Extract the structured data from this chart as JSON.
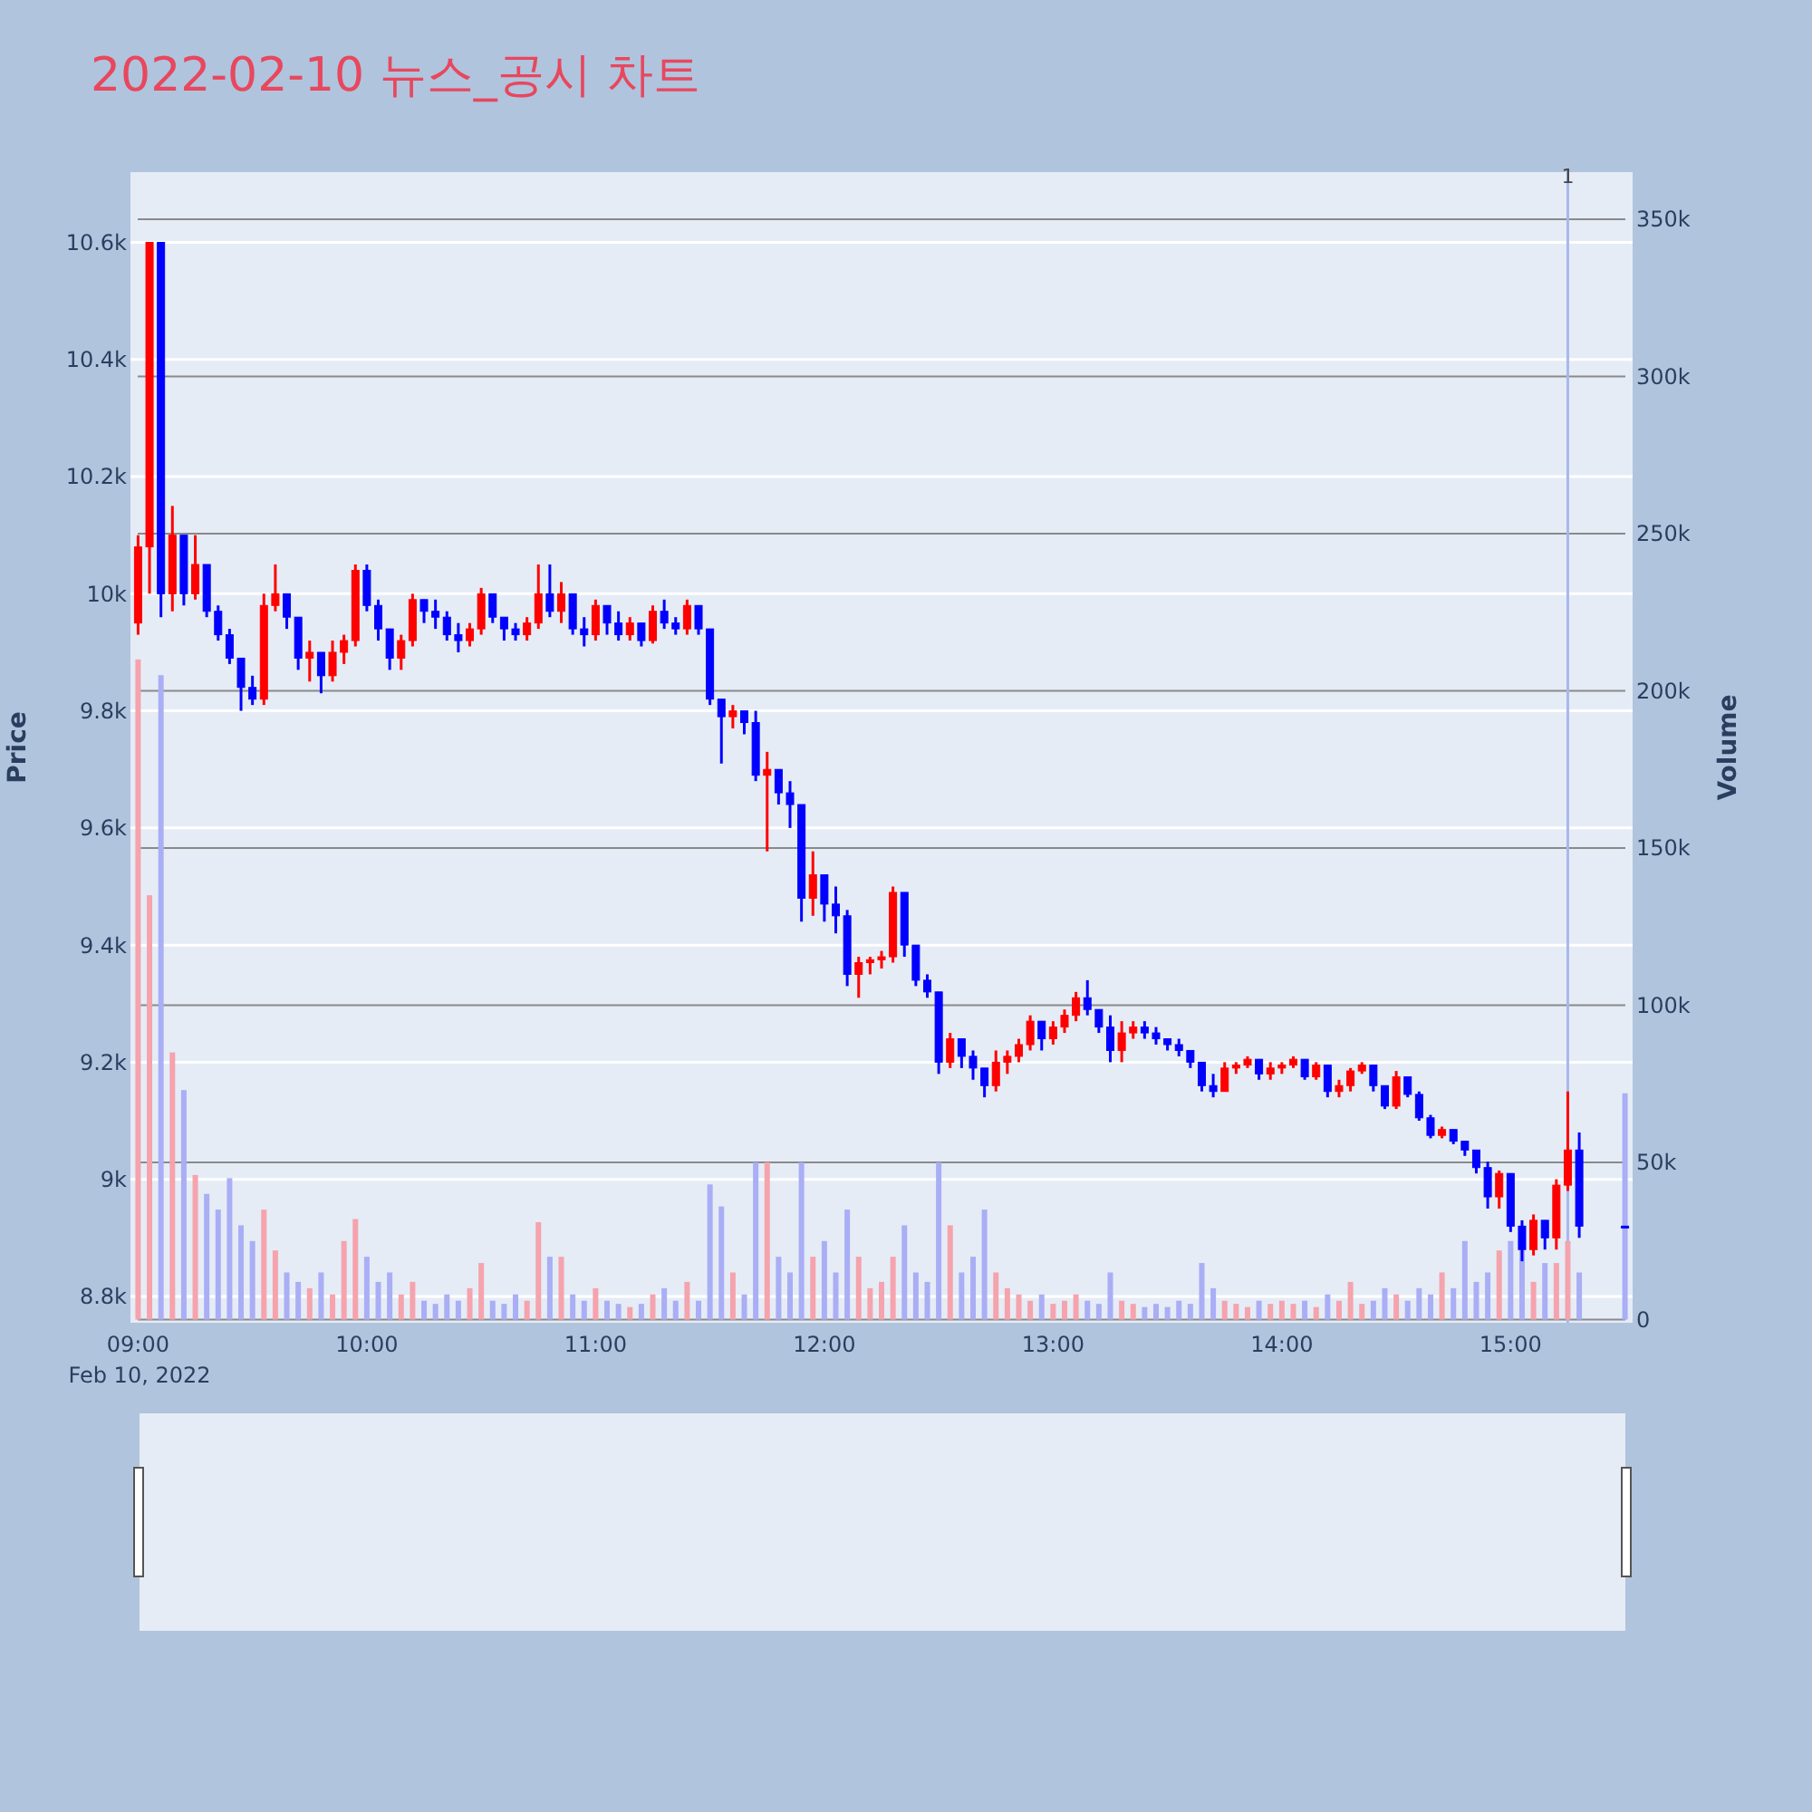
{
  "chart_data": {
    "type": "candlestick",
    "title": "2022-02-10 뉴스_공시 차트",
    "ylabel": "Price",
    "y2label": "Volume",
    "annotations": [
      "Feb 10, 2022"
    ],
    "x": [
      "2022-02-10T09:00",
      "2022-02-10T09:03",
      "2022-02-10T09:06",
      "2022-02-10T09:09",
      "2022-02-10T09:12",
      "2022-02-10T09:15",
      "2022-02-10T09:18",
      "2022-02-10T09:21",
      "2022-02-10T09:24",
      "2022-02-10T09:27",
      "2022-02-10T09:30",
      "2022-02-10T09:33",
      "2022-02-10T09:36",
      "2022-02-10T09:39",
      "2022-02-10T09:42",
      "2022-02-10T09:45",
      "2022-02-10T09:48",
      "2022-02-10T09:51",
      "2022-02-10T09:54",
      "2022-02-10T09:57",
      "2022-02-10T10:00",
      "2022-02-10T10:03",
      "2022-02-10T10:06",
      "2022-02-10T10:09",
      "2022-02-10T10:12",
      "2022-02-10T10:15",
      "2022-02-10T10:18",
      "2022-02-10T10:21",
      "2022-02-10T10:24",
      "2022-02-10T10:27",
      "2022-02-10T10:30",
      "2022-02-10T10:33",
      "2022-02-10T10:36",
      "2022-02-10T10:39",
      "2022-02-10T10:42",
      "2022-02-10T10:45",
      "2022-02-10T10:48",
      "2022-02-10T10:51",
      "2022-02-10T10:54",
      "2022-02-10T10:57",
      "2022-02-10T11:00",
      "2022-02-10T11:03",
      "2022-02-10T11:06",
      "2022-02-10T11:09",
      "2022-02-10T11:12",
      "2022-02-10T11:15",
      "2022-02-10T11:18",
      "2022-02-10T11:21",
      "2022-02-10T11:24",
      "2022-02-10T11:27",
      "2022-02-10T11:30",
      "2022-02-10T11:33",
      "2022-02-10T11:36",
      "2022-02-10T11:39",
      "2022-02-10T11:42",
      "2022-02-10T11:45",
      "2022-02-10T11:48",
      "2022-02-10T11:51",
      "2022-02-10T11:54",
      "2022-02-10T11:57",
      "2022-02-10T12:00",
      "2022-02-10T12:03",
      "2022-02-10T12:06",
      "2022-02-10T12:09",
      "2022-02-10T12:12",
      "2022-02-10T12:15",
      "2022-02-10T12:18",
      "2022-02-10T12:21",
      "2022-02-10T12:24",
      "2022-02-10T12:27",
      "2022-02-10T12:30",
      "2022-02-10T12:33",
      "2022-02-10T12:36",
      "2022-02-10T12:39",
      "2022-02-10T12:42",
      "2022-02-10T12:45",
      "2022-02-10T12:48",
      "2022-02-10T12:51",
      "2022-02-10T12:54",
      "2022-02-10T12:57",
      "2022-02-10T13:00",
      "2022-02-10T13:03",
      "2022-02-10T13:06",
      "2022-02-10T13:09",
      "2022-02-10T13:12",
      "2022-02-10T13:15",
      "2022-02-10T13:18",
      "2022-02-10T13:21",
      "2022-02-10T13:24",
      "2022-02-10T13:27",
      "2022-02-10T13:30",
      "2022-02-10T13:33",
      "2022-02-10T13:36",
      "2022-02-10T13:39",
      "2022-02-10T13:42",
      "2022-02-10T13:45",
      "2022-02-10T13:48",
      "2022-02-10T13:51",
      "2022-02-10T13:54",
      "2022-02-10T13:57",
      "2022-02-10T14:00",
      "2022-02-10T14:03",
      "2022-02-10T14:06",
      "2022-02-10T14:09",
      "2022-02-10T14:12",
      "2022-02-10T14:15",
      "2022-02-10T14:18",
      "2022-02-10T14:21",
      "2022-02-10T14:24",
      "2022-02-10T14:27",
      "2022-02-10T14:30",
      "2022-02-10T14:33",
      "2022-02-10T14:36",
      "2022-02-10T14:39",
      "2022-02-10T14:42",
      "2022-02-10T14:45",
      "2022-02-10T14:48",
      "2022-02-10T14:51",
      "2022-02-10T14:54",
      "2022-02-10T14:57",
      "2022-02-10T15:00",
      "2022-02-10T15:03",
      "2022-02-10T15:06",
      "2022-02-10T15:09",
      "2022-02-10T15:12",
      "2022-02-10T15:15",
      "2022-02-10T15:18",
      "2022-02-10T15:30"
    ],
    "ohlc": [
      [
        9950,
        10100,
        9930,
        10080
      ],
      [
        10080,
        10600,
        10000,
        10600
      ],
      [
        10600,
        10600,
        9960,
        10000
      ],
      [
        10000,
        10150,
        9970,
        10100
      ],
      [
        10100,
        10100,
        9980,
        10000
      ],
      [
        10000,
        10100,
        9990,
        10050
      ],
      [
        10050,
        10050,
        9960,
        9970
      ],
      [
        9970,
        9980,
        9920,
        9930
      ],
      [
        9930,
        9940,
        9880,
        9890
      ],
      [
        9890,
        9890,
        9800,
        9840
      ],
      [
        9840,
        9860,
        9810,
        9820
      ],
      [
        9820,
        10000,
        9810,
        9980
      ],
      [
        9980,
        10050,
        9970,
        10000
      ],
      [
        10000,
        10000,
        9940,
        9960
      ],
      [
        9960,
        9960,
        9870,
        9890
      ],
      [
        9890,
        9920,
        9850,
        9900
      ],
      [
        9900,
        9900,
        9830,
        9860
      ],
      [
        9860,
        9920,
        9850,
        9900
      ],
      [
        9900,
        9930,
        9880,
        9920
      ],
      [
        9920,
        10050,
        9910,
        10040
      ],
      [
        10040,
        10050,
        9970,
        9980
      ],
      [
        9980,
        9990,
        9920,
        9940
      ],
      [
        9940,
        9940,
        9870,
        9890
      ],
      [
        9890,
        9930,
        9870,
        9920
      ],
      [
        9920,
        10000,
        9910,
        9990
      ],
      [
        9990,
        9990,
        9950,
        9970
      ],
      [
        9970,
        9990,
        9940,
        9960
      ],
      [
        9960,
        9970,
        9920,
        9930
      ],
      [
        9930,
        9950,
        9900,
        9920
      ],
      [
        9920,
        9950,
        9910,
        9940
      ],
      [
        9940,
        10010,
        9930,
        10000
      ],
      [
        10000,
        10000,
        9950,
        9960
      ],
      [
        9960,
        9960,
        9920,
        9940
      ],
      [
        9940,
        9950,
        9920,
        9930
      ],
      [
        9930,
        9960,
        9920,
        9950
      ],
      [
        9950,
        10050,
        9940,
        10000
      ],
      [
        10000,
        10050,
        9960,
        9970
      ],
      [
        9970,
        10020,
        9950,
        10000
      ],
      [
        10000,
        10000,
        9930,
        9940
      ],
      [
        9940,
        9960,
        9910,
        9930
      ],
      [
        9930,
        9990,
        9920,
        9980
      ],
      [
        9980,
        9980,
        9930,
        9950
      ],
      [
        9950,
        9970,
        9920,
        9930
      ],
      [
        9930,
        9960,
        9920,
        9950
      ],
      [
        9950,
        9950,
        9910,
        9920
      ],
      [
        9920,
        9980,
        9915,
        9970
      ],
      [
        9970,
        9990,
        9940,
        9950
      ],
      [
        9950,
        9960,
        9930,
        9940
      ],
      [
        9940,
        9990,
        9930,
        9980
      ],
      [
        9980,
        9980,
        9930,
        9940
      ],
      [
        9940,
        9940,
        9810,
        9820
      ],
      [
        9820,
        9820,
        9710,
        9790
      ],
      [
        9790,
        9810,
        9770,
        9800
      ],
      [
        9800,
        9800,
        9760,
        9780
      ],
      [
        9780,
        9800,
        9680,
        9690
      ],
      [
        9690,
        9730,
        9560,
        9700
      ],
      [
        9700,
        9700,
        9640,
        9660
      ],
      [
        9660,
        9680,
        9600,
        9640
      ],
      [
        9640,
        9640,
        9440,
        9480
      ],
      [
        9480,
        9560,
        9450,
        9520
      ],
      [
        9520,
        9520,
        9440,
        9470
      ],
      [
        9470,
        9500,
        9420,
        9450
      ],
      [
        9450,
        9460,
        9330,
        9350
      ],
      [
        9350,
        9380,
        9310,
        9370
      ],
      [
        9370,
        9380,
        9350,
        9375
      ],
      [
        9375,
        9390,
        9360,
        9380
      ],
      [
        9380,
        9500,
        9370,
        9490
      ],
      [
        9490,
        9490,
        9380,
        9400
      ],
      [
        9400,
        9400,
        9330,
        9340
      ],
      [
        9340,
        9350,
        9310,
        9320
      ],
      [
        9320,
        9320,
        9180,
        9200
      ],
      [
        9200,
        9250,
        9190,
        9240
      ],
      [
        9240,
        9240,
        9190,
        9210
      ],
      [
        9210,
        9220,
        9170,
        9190
      ],
      [
        9190,
        9190,
        9140,
        9160
      ],
      [
        9160,
        9220,
        9150,
        9200
      ],
      [
        9200,
        9220,
        9180,
        9210
      ],
      [
        9210,
        9240,
        9200,
        9230
      ],
      [
        9230,
        9280,
        9220,
        9270
      ],
      [
        9270,
        9270,
        9220,
        9240
      ],
      [
        9240,
        9270,
        9230,
        9260
      ],
      [
        9260,
        9290,
        9250,
        9280
      ],
      [
        9280,
        9320,
        9270,
        9310
      ],
      [
        9310,
        9340,
        9280,
        9290
      ],
      [
        9290,
        9290,
        9250,
        9260
      ],
      [
        9260,
        9280,
        9200,
        9220
      ],
      [
        9220,
        9270,
        9200,
        9250
      ],
      [
        9250,
        9270,
        9240,
        9260
      ],
      [
        9260,
        9270,
        9240,
        9250
      ],
      [
        9250,
        9260,
        9230,
        9240
      ],
      [
        9240,
        9240,
        9220,
        9230
      ],
      [
        9230,
        9240,
        9210,
        9220
      ],
      [
        9220,
        9220,
        9190,
        9200
      ],
      [
        9200,
        9200,
        9150,
        9160
      ],
      [
        9160,
        9180,
        9140,
        9150
      ],
      [
        9150,
        9200,
        9150,
        9190
      ],
      [
        9190,
        9200,
        9180,
        9195
      ],
      [
        9195,
        9210,
        9190,
        9205
      ],
      [
        9205,
        9205,
        9170,
        9180
      ],
      [
        9180,
        9200,
        9170,
        9190
      ],
      [
        9190,
        9200,
        9180,
        9195
      ],
      [
        9195,
        9210,
        9190,
        9205
      ],
      [
        9205,
        9205,
        9170,
        9175
      ],
      [
        9175,
        9200,
        9170,
        9195
      ],
      [
        9195,
        9195,
        9140,
        9150
      ],
      [
        9150,
        9170,
        9140,
        9160
      ],
      [
        9160,
        9190,
        9150,
        9185
      ],
      [
        9185,
        9200,
        9180,
        9195
      ],
      [
        9195,
        9195,
        9150,
        9160
      ],
      [
        9160,
        9160,
        9120,
        9125
      ],
      [
        9125,
        9185,
        9120,
        9175
      ],
      [
        9175,
        9175,
        9140,
        9145
      ],
      [
        9145,
        9150,
        9100,
        9105
      ],
      [
        9105,
        9110,
        9070,
        9075
      ],
      [
        9075,
        9090,
        9070,
        9085
      ],
      [
        9085,
        9085,
        9060,
        9065
      ],
      [
        9065,
        9065,
        9040,
        9050
      ],
      [
        9050,
        9050,
        9010,
        9020
      ],
      [
        9020,
        9030,
        8950,
        8970
      ],
      [
        8970,
        9015,
        8950,
        9010
      ],
      [
        9010,
        9010,
        8910,
        8920
      ],
      [
        8920,
        8930,
        8860,
        8880
      ],
      [
        8880,
        8940,
        8870,
        8930
      ],
      [
        8930,
        8930,
        8880,
        8900
      ],
      [
        8900,
        9000,
        8880,
        8990
      ],
      [
        8990,
        9150,
        8980,
        9050
      ],
      [
        9050,
        9080,
        8900,
        8920
      ],
      [
        8920,
        8920,
        8920,
        8920
      ]
    ],
    "colors": [
      "#ff0000",
      "#ff0000",
      "#0000ff",
      "#ff0000",
      "#0000ff",
      "#ff0000",
      "#0000ff",
      "#0000ff",
      "#0000ff",
      "#0000ff",
      "#0000ff",
      "#ff0000",
      "#ff0000",
      "#0000ff",
      "#0000ff",
      "#ff0000",
      "#0000ff",
      "#ff0000",
      "#ff0000",
      "#ff0000",
      "#0000ff",
      "#0000ff",
      "#0000ff",
      "#ff0000",
      "#ff0000",
      "#0000ff",
      "#0000ff",
      "#0000ff",
      "#0000ff",
      "#ff0000",
      "#ff0000",
      "#0000ff",
      "#0000ff",
      "#0000ff",
      "#ff0000",
      "#ff0000",
      "#0000ff",
      "#ff0000",
      "#0000ff",
      "#0000ff",
      "#ff0000",
      "#0000ff",
      "#0000ff",
      "#ff0000",
      "#0000ff",
      "#ff0000",
      "#0000ff",
      "#0000ff",
      "#ff0000",
      "#0000ff",
      "#0000ff",
      "#0000ff",
      "#ff0000",
      "#0000ff",
      "#0000ff",
      "#ff0000",
      "#0000ff",
      "#0000ff",
      "#0000ff",
      "#ff0000",
      "#0000ff",
      "#0000ff",
      "#0000ff",
      "#ff0000",
      "#ff0000",
      "#ff0000",
      "#ff0000",
      "#0000ff",
      "#0000ff",
      "#0000ff",
      "#0000ff",
      "#ff0000",
      "#0000ff",
      "#0000ff",
      "#0000ff",
      "#ff0000",
      "#ff0000",
      "#ff0000",
      "#ff0000",
      "#0000ff",
      "#ff0000",
      "#ff0000",
      "#ff0000",
      "#0000ff",
      "#0000ff",
      "#0000ff",
      "#ff0000",
      "#ff0000",
      "#0000ff",
      "#0000ff",
      "#0000ff",
      "#0000ff",
      "#0000ff",
      "#0000ff",
      "#0000ff",
      "#ff0000",
      "#ff0000",
      "#ff0000",
      "#0000ff",
      "#ff0000",
      "#ff0000",
      "#ff0000",
      "#0000ff",
      "#ff0000",
      "#0000ff",
      "#ff0000",
      "#ff0000",
      "#ff0000",
      "#0000ff",
      "#0000ff",
      "#ff0000",
      "#0000ff",
      "#0000ff",
      "#0000ff",
      "#ff0000",
      "#0000ff",
      "#0000ff",
      "#0000ff",
      "#0000ff",
      "#ff0000",
      "#0000ff",
      "#0000ff",
      "#ff0000",
      "#0000ff",
      "#ff0000",
      "#ff0000",
      "#0000ff",
      "#0000ff"
    ],
    "series": [
      {
        "type": "bar",
        "axis": "y2",
        "values": [
          210000,
          135000,
          205000,
          85000,
          73000,
          46000,
          40000,
          35000,
          45000,
          30000,
          25000,
          35000,
          22000,
          15000,
          12000,
          10000,
          15000,
          8000,
          25000,
          32000,
          20000,
          12000,
          15000,
          8000,
          12000,
          6000,
          5000,
          8000,
          6000,
          10000,
          18000,
          6000,
          5000,
          8000,
          6000,
          31000,
          20000,
          20000,
          8000,
          6000,
          10000,
          6000,
          5000,
          4000,
          5000,
          8000,
          10000,
          6000,
          12000,
          6000,
          43000,
          36000,
          15000,
          8000,
          50000,
          50000,
          20000,
          15000,
          50000,
          20000,
          25000,
          15000,
          35000,
          20000,
          10000,
          12000,
          20000,
          30000,
          15000,
          12000,
          50000,
          30000,
          15000,
          20000,
          35000,
          15000,
          10000,
          8000,
          6000,
          8000,
          5000,
          6000,
          8000,
          6000,
          5000,
          15000,
          6000,
          5000,
          4000,
          5000,
          4000,
          6000,
          5000,
          18000,
          10000,
          6000,
          5000,
          4000,
          6000,
          5000,
          6000,
          5000,
          6000,
          4000,
          8000,
          6000,
          12000,
          5000,
          6000,
          10000,
          8000,
          6000,
          10000,
          8000,
          15000,
          10000,
          25000,
          12000,
          15000,
          22000,
          25000,
          22000,
          12000,
          18000,
          18000,
          25000,
          15000,
          72000
        ],
        "colors": [
          "#f5a3ad",
          "#f5a3ad",
          "#a9aef5",
          "#f5a3ad",
          "#a9aef5",
          "#f5a3ad",
          "#a9aef5",
          "#a9aef5",
          "#a9aef5",
          "#a9aef5",
          "#a9aef5",
          "#f5a3ad",
          "#f5a3ad",
          "#a9aef5",
          "#a9aef5",
          "#f5a3ad",
          "#a9aef5",
          "#f5a3ad",
          "#f5a3ad",
          "#f5a3ad",
          "#a9aef5",
          "#a9aef5",
          "#a9aef5",
          "#f5a3ad",
          "#f5a3ad",
          "#a9aef5",
          "#a9aef5",
          "#a9aef5",
          "#a9aef5",
          "#f5a3ad",
          "#f5a3ad",
          "#a9aef5",
          "#a9aef5",
          "#a9aef5",
          "#f5a3ad",
          "#f5a3ad",
          "#a9aef5",
          "#f5a3ad",
          "#a9aef5",
          "#a9aef5",
          "#f5a3ad",
          "#a9aef5",
          "#a9aef5",
          "#f5a3ad",
          "#a9aef5",
          "#f5a3ad",
          "#a9aef5",
          "#a9aef5",
          "#f5a3ad",
          "#a9aef5",
          "#a9aef5",
          "#a9aef5",
          "#f5a3ad",
          "#a9aef5",
          "#a9aef5",
          "#f5a3ad",
          "#a9aef5",
          "#a9aef5",
          "#a9aef5",
          "#f5a3ad",
          "#a9aef5",
          "#a9aef5",
          "#a9aef5",
          "#f5a3ad",
          "#f5a3ad",
          "#f5a3ad",
          "#f5a3ad",
          "#a9aef5",
          "#a9aef5",
          "#a9aef5",
          "#a9aef5",
          "#f5a3ad",
          "#a9aef5",
          "#a9aef5",
          "#a9aef5",
          "#f5a3ad",
          "#f5a3ad",
          "#f5a3ad",
          "#f5a3ad",
          "#a9aef5",
          "#f5a3ad",
          "#f5a3ad",
          "#f5a3ad",
          "#a9aef5",
          "#a9aef5",
          "#a9aef5",
          "#f5a3ad",
          "#f5a3ad",
          "#a9aef5",
          "#a9aef5",
          "#a9aef5",
          "#a9aef5",
          "#a9aef5",
          "#a9aef5",
          "#a9aef5",
          "#f5a3ad",
          "#f5a3ad",
          "#f5a3ad",
          "#a9aef5",
          "#f5a3ad",
          "#f5a3ad",
          "#f5a3ad",
          "#a9aef5",
          "#f5a3ad",
          "#a9aef5",
          "#f5a3ad",
          "#f5a3ad",
          "#f5a3ad",
          "#a9aef5",
          "#a9aef5",
          "#f5a3ad",
          "#a9aef5",
          "#a9aef5",
          "#a9aef5",
          "#f5a3ad",
          "#a9aef5",
          "#a9aef5",
          "#a9aef5",
          "#a9aef5",
          "#f5a3ad",
          "#a9aef5",
          "#a9aef5",
          "#f5a3ad",
          "#a9aef5",
          "#f5a3ad",
          "#f5a3ad",
          "#a9aef5",
          "#a9aef5"
        ]
      }
    ],
    "xlim": [
      "2022-02-10T08:58",
      "2022-02-10T15:32"
    ],
    "xticks": [
      {
        "value": "2022-02-10T09:00",
        "label": "09:00"
      },
      {
        "value": "2022-02-10T10:00",
        "label": "10:00"
      },
      {
        "value": "2022-02-10T11:00",
        "label": "11:00"
      },
      {
        "value": "2022-02-10T12:00",
        "label": "12:00"
      },
      {
        "value": "2022-02-10T13:00",
        "label": "13:00"
      },
      {
        "value": "2022-02-10T14:00",
        "label": "14:00"
      },
      {
        "value": "2022-02-10T15:00",
        "label": "15:00"
      }
    ],
    "ylim": [
      8755,
      10720
    ],
    "yticks": [
      {
        "value": 8800,
        "label": "8.8k"
      },
      {
        "value": 9000,
        "label": "9k"
      },
      {
        "value": 9200,
        "label": "9.2k"
      },
      {
        "value": 9400,
        "label": "9.4k"
      },
      {
        "value": 9600,
        "label": "9.6k"
      },
      {
        "value": 9800,
        "label": "9.8k"
      },
      {
        "value": 10000,
        "label": "10k"
      },
      {
        "value": 10200,
        "label": "10.2k"
      },
      {
        "value": 10400,
        "label": "10.4k"
      },
      {
        "value": 10600,
        "label": "10.6k"
      }
    ],
    "y2lim": [
      -1000,
      365000
    ],
    "y2ticks": [
      0,
      {
        "value": 50000,
        "label": "50k"
      },
      {
        "value": 100000,
        "label": "100k"
      },
      {
        "value": 150000,
        "label": "150k"
      },
      {
        "value": 200000,
        "label": "200k"
      },
      {
        "value": 250000,
        "label": "250k"
      },
      {
        "value": 300000,
        "label": "300k"
      },
      {
        "value": 350000,
        "label": "350k"
      }
    ],
    "ref_lines": [
      {
        "axis": "x",
        "value": "2022-02-10T15:15",
        "label": "1",
        "color": "#a8b8ec"
      }
    ],
    "grid": "y"
  }
}
